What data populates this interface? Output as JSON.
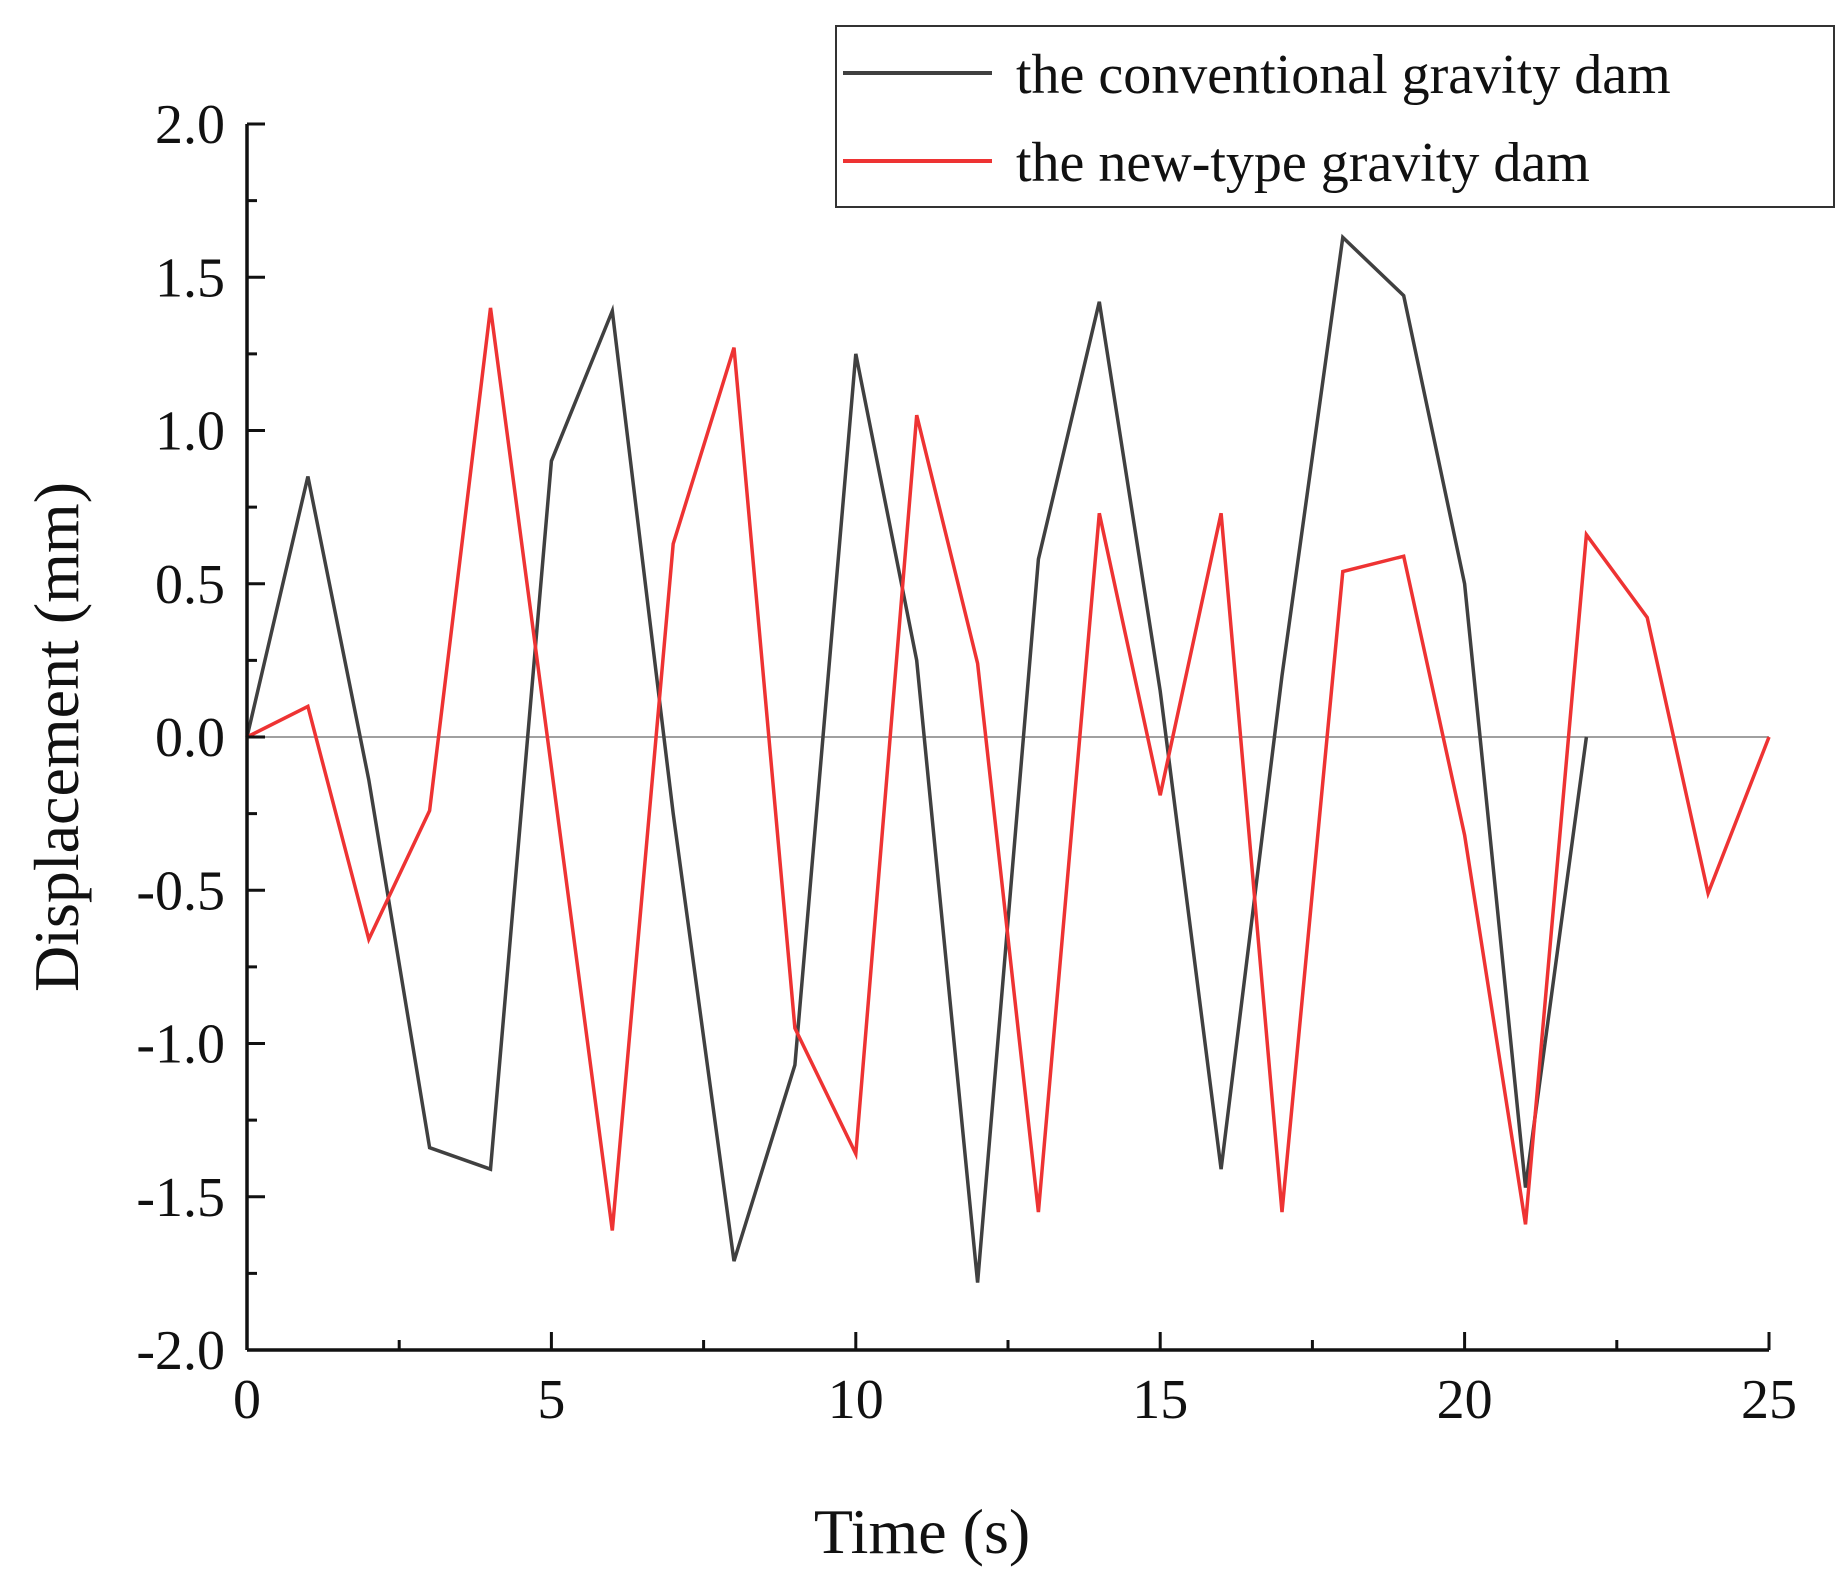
{
  "chart_data": {
    "type": "line",
    "title": "",
    "xlabel": "Time (s)",
    "ylabel": "Displacement (mm)",
    "xlim": [
      0,
      25
    ],
    "ylim": [
      -2.0,
      2.0
    ],
    "x_ticks": [
      0,
      5,
      10,
      15,
      20,
      25
    ],
    "x_tick_labels": [
      "0",
      "5",
      "10",
      "15",
      "20",
      "25"
    ],
    "y_ticks": [
      2.0,
      1.5,
      1.0,
      0.5,
      0.0,
      -0.5,
      -1.0,
      -1.5,
      -2.0
    ],
    "y_tick_labels": [
      "2.0",
      "1.5",
      "1.0",
      "0.5",
      "0.0",
      "-0.5",
      "-1.0",
      "-1.5",
      "-2.0"
    ],
    "grid": false,
    "zero_line": true,
    "legend_position": "top-right",
    "series": [
      {
        "name": "the conventional gravity dam",
        "color": "#404040",
        "x": [
          0,
          1,
          2,
          3,
          4,
          5,
          6,
          7,
          8,
          9,
          10,
          11,
          12,
          13,
          14,
          15,
          16,
          17,
          18,
          19,
          20,
          21,
          22
        ],
        "values": [
          0,
          0.85,
          -0.14,
          -1.34,
          -1.41,
          0.9,
          1.39,
          -0.25,
          -1.71,
          -1.07,
          1.25,
          0.25,
          -1.78,
          0.58,
          1.42,
          0.15,
          -1.41,
          0.2,
          1.63,
          1.44,
          0.5,
          -1.47,
          0.0
        ]
      },
      {
        "name": "the new-type gravity dam",
        "color": "#ee3333",
        "x": [
          0,
          1,
          2,
          3,
          4,
          5,
          6,
          7,
          8,
          9,
          10,
          11,
          12,
          13,
          14,
          15,
          16,
          17,
          18,
          19,
          20,
          21,
          22,
          23,
          24,
          25
        ],
        "values": [
          0,
          0.1,
          -0.66,
          -0.24,
          1.4,
          -0.1,
          -1.61,
          0.63,
          1.27,
          -0.95,
          -1.36,
          1.05,
          0.24,
          -1.55,
          0.73,
          -0.19,
          0.73,
          -1.55,
          0.54,
          0.59,
          -0.32,
          -1.59,
          0.66,
          0.39,
          -0.51,
          0.0
        ]
      }
    ]
  }
}
